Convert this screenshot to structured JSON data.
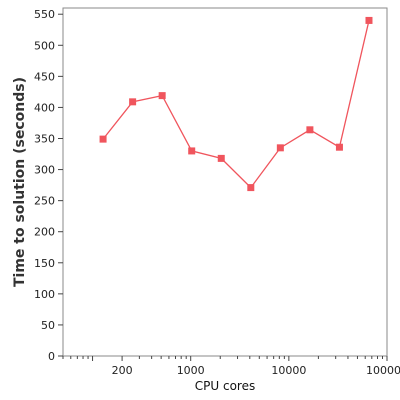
{
  "chart_data": {
    "type": "line",
    "title": "",
    "xlabel": "CPU cores",
    "ylabel": "Time to solution (seconds)",
    "x_scale": "log",
    "xlim": [
      50,
      100000
    ],
    "ylim": [
      0,
      560
    ],
    "x_ticks": [
      {
        "value": 200,
        "label": "200"
      },
      {
        "value": 1000,
        "label": "1000"
      },
      {
        "value": 10000,
        "label": "10000"
      },
      {
        "value": 100000,
        "label": "100000"
      }
    ],
    "y_ticks": [
      {
        "value": 0,
        "label": "0"
      },
      {
        "value": 50,
        "label": "50"
      },
      {
        "value": 100,
        "label": "100"
      },
      {
        "value": 150,
        "label": "150"
      },
      {
        "value": 200,
        "label": "200"
      },
      {
        "value": 250,
        "label": "250"
      },
      {
        "value": 300,
        "label": "300"
      },
      {
        "value": 350,
        "label": "350"
      },
      {
        "value": 400,
        "label": "400"
      },
      {
        "value": 450,
        "label": "450"
      },
      {
        "value": 500,
        "label": "500"
      },
      {
        "value": 550,
        "label": "550"
      }
    ],
    "grid": false,
    "series": [
      {
        "color": "#f0555d",
        "marker": "square",
        "x": [
          128,
          256,
          512,
          1024,
          2048,
          4096,
          8192,
          16384,
          32768,
          65536
        ],
        "y": [
          349,
          409,
          419,
          330,
          318,
          271,
          335,
          364,
          336,
          540
        ]
      }
    ]
  }
}
